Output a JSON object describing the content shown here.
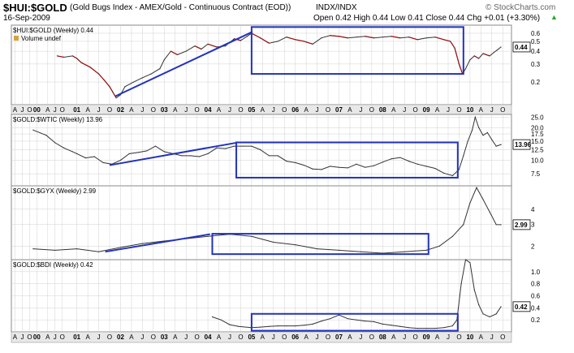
{
  "header": {
    "symbol": "$HUI:$GOLD",
    "description": "(Gold Bugs Index - AMEX/Gold - Continuous Contract (EOD))",
    "exchange": "INDX/INDX",
    "date": "16-Sep-2009",
    "watermark": "© StockCharts.com",
    "ohlc": "Open 0.42  High 0.44  Low 0.41  Close 0.44  Chg +0.01 (+3.30%)",
    "chg_arrow": "▲"
  },
  "colors": {
    "price_line": "#333333",
    "down_line": "#a01010",
    "box": "#2233bb",
    "grid": "#d2d2d2",
    "frame": "#888888",
    "volume_legend": "#d8a040"
  },
  "chart_data": [
    {
      "type": "line",
      "panel_label": "$HUI:$GOLD (Weekly) 0.44",
      "legend": "Volume undef",
      "last_value": "0.44",
      "y_scale": "log",
      "ylim": [
        0.12,
        0.72
      ],
      "y_ticks": [
        0.2,
        0.3,
        0.4,
        0.5,
        0.6
      ],
      "y_tick_labels": [
        "0.2",
        "0.3",
        "0.4",
        "0.5",
        "0.6"
      ],
      "x": [
        1999.55,
        1999.7,
        1999.9,
        2000.0,
        2000.1,
        2000.3,
        2000.5,
        2000.62,
        2000.75,
        2000.82,
        2000.9,
        2001.0,
        2001.1,
        2001.3,
        2001.5,
        2001.7,
        2001.9,
        2002.0,
        2002.15,
        2002.3,
        2002.5,
        2002.7,
        2002.85,
        2003.0,
        2003.2,
        2003.4,
        2003.6,
        2003.75,
        2003.9,
        2004.0,
        2004.2,
        2004.4,
        2004.6,
        2004.8,
        2005.0,
        2005.2,
        2005.4,
        2005.6,
        2005.8,
        2006.0,
        2006.2,
        2006.4,
        2006.6,
        2006.8,
        2007.0,
        2007.2,
        2007.4,
        2007.6,
        2007.8,
        2008.0,
        2008.2,
        2008.4,
        2008.55,
        2008.65,
        2008.75,
        2008.83,
        2008.9,
        2009.0,
        2009.1,
        2009.2,
        2009.3,
        2009.45,
        2009.55,
        2009.62,
        2009.71
      ],
      "values": [
        0.36,
        0.35,
        0.36,
        0.34,
        0.31,
        0.28,
        0.24,
        0.21,
        0.18,
        0.16,
        0.14,
        0.15,
        0.18,
        0.2,
        0.22,
        0.24,
        0.27,
        0.33,
        0.4,
        0.37,
        0.4,
        0.45,
        0.42,
        0.47,
        0.44,
        0.45,
        0.53,
        0.51,
        0.56,
        0.6,
        0.54,
        0.48,
        0.5,
        0.55,
        0.52,
        0.5,
        0.47,
        0.54,
        0.57,
        0.56,
        0.54,
        0.55,
        0.56,
        0.54,
        0.55,
        0.56,
        0.54,
        0.55,
        0.52,
        0.54,
        0.55,
        0.52,
        0.5,
        0.43,
        0.3,
        0.24,
        0.27,
        0.33,
        0.36,
        0.34,
        0.38,
        0.36,
        0.39,
        0.41,
        0.44
      ],
      "trendline": {
        "x": [
          2000.88,
          2004.02
        ],
        "y": [
          0.145,
          0.62
        ]
      },
      "box": {
        "x": [
          2004.0,
          2008.85
        ],
        "y": [
          0.24,
          0.69
        ]
      }
    },
    {
      "type": "line",
      "panel_label": "$GOLD:$WTIC (Weekly) 13.96",
      "last_value": "13.96",
      "y_scale": "log",
      "ylim": [
        5.8,
        26.5
      ],
      "y_ticks": [
        7.5,
        10.0,
        12.5,
        15.0,
        17.5,
        20.0,
        25.0
      ],
      "y_tick_labels": [
        "7.5",
        "10.0",
        "12.5",
        "15.0",
        "17.5",
        "20.0",
        "25.0"
      ],
      "x": [
        1999.0,
        1999.3,
        1999.5,
        1999.7,
        1999.9,
        2000.0,
        2000.2,
        2000.4,
        2000.6,
        2000.8,
        2001.0,
        2001.2,
        2001.4,
        2001.6,
        2001.8,
        2002.0,
        2002.2,
        2002.4,
        2002.6,
        2002.8,
        2003.0,
        2003.2,
        2003.4,
        2003.6,
        2003.8,
        2004.0,
        2004.2,
        2004.4,
        2004.6,
        2004.8,
        2005.0,
        2005.2,
        2005.4,
        2005.6,
        2005.8,
        2006.0,
        2006.2,
        2006.4,
        2006.6,
        2006.8,
        2007.0,
        2007.2,
        2007.4,
        2007.6,
        2007.8,
        2008.0,
        2008.2,
        2008.4,
        2008.6,
        2008.75,
        2008.85,
        2008.95,
        2009.05,
        2009.12,
        2009.2,
        2009.3,
        2009.4,
        2009.5,
        2009.6,
        2009.71
      ],
      "values": [
        19,
        17,
        14.5,
        13,
        12,
        11.5,
        10.5,
        10.8,
        9.5,
        9.2,
        10,
        11.5,
        11.8,
        12.2,
        13.5,
        12,
        11.5,
        11,
        11,
        10.8,
        11.5,
        13,
        12.8,
        13.5,
        13.5,
        13.5,
        12.5,
        11,
        11,
        9.8,
        9.5,
        9.0,
        8.3,
        8.2,
        8.8,
        8.6,
        8.5,
        9.2,
        8.6,
        8.9,
        9.6,
        10.3,
        10.6,
        9.8,
        9.2,
        8.8,
        8.4,
        7.6,
        7.2,
        8.2,
        11,
        15,
        19,
        25,
        20,
        17,
        18,
        15.5,
        13.5,
        13.96
      ],
      "trendline": {
        "x": [
          2000.75,
          2003.65
        ],
        "y": [
          9.0,
          14.5
        ]
      },
      "box": {
        "x": [
          2003.65,
          2008.72
        ],
        "y": [
          6.9,
          14.6
        ]
      }
    },
    {
      "type": "line",
      "panel_label": "$GOLD:$GYX (Weekly) 2.99",
      "last_value": "2.99",
      "y_scale": "log",
      "ylim": [
        1.55,
        6.2
      ],
      "y_ticks": [
        2,
        3,
        4
      ],
      "y_tick_labels": [
        "2",
        "3",
        "4"
      ],
      "x": [
        1999.0,
        1999.5,
        2000.0,
        2000.5,
        2001.0,
        2001.5,
        2002.0,
        2002.5,
        2003.0,
        2003.5,
        2004.0,
        2004.5,
        2005.0,
        2005.5,
        2006.0,
        2006.5,
        2007.0,
        2007.5,
        2008.0,
        2008.3,
        2008.6,
        2008.85,
        2009.0,
        2009.15,
        2009.3,
        2009.45,
        2009.6,
        2009.71
      ],
      "values": [
        1.9,
        1.85,
        1.9,
        1.8,
        1.95,
        2.1,
        2.2,
        2.3,
        2.4,
        2.5,
        2.4,
        2.15,
        2.05,
        1.9,
        1.85,
        1.8,
        1.75,
        1.8,
        1.85,
        2.0,
        2.4,
        3.0,
        4.5,
        6.0,
        4.8,
        3.8,
        3.0,
        2.99
      ],
      "trendline": {
        "x": [
          2000.65,
          2003.05
        ],
        "y": [
          1.8,
          2.5
        ]
      },
      "box": {
        "x": [
          2003.1,
          2008.05
        ],
        "y": [
          1.72,
          2.52
        ]
      }
    },
    {
      "type": "line",
      "panel_label": "$GOLD:$BDI (Weekly) 0.42",
      "last_value": "0.42",
      "y_scale": "linear",
      "ylim": [
        0.0,
        1.2
      ],
      "y_ticks": [
        0.2,
        0.4,
        0.6,
        0.8,
        1.0
      ],
      "y_tick_labels": [
        "0.2",
        "0.4",
        "0.6",
        "0.8",
        "1.0"
      ],
      "x": [
        2003.1,
        2003.3,
        2003.5,
        2003.7,
        2004.0,
        2004.2,
        2004.4,
        2004.6,
        2004.8,
        2005.0,
        2005.2,
        2005.4,
        2005.6,
        2005.8,
        2006.0,
        2006.2,
        2006.4,
        2006.6,
        2006.8,
        2007.0,
        2007.2,
        2007.4,
        2007.6,
        2007.8,
        2008.0,
        2008.2,
        2008.4,
        2008.6,
        2008.7,
        2008.8,
        2008.9,
        2009.0,
        2009.1,
        2009.2,
        2009.3,
        2009.45,
        2009.6,
        2009.71
      ],
      "values": [
        0.25,
        0.2,
        0.12,
        0.09,
        0.07,
        0.08,
        0.09,
        0.1,
        0.1,
        0.1,
        0.11,
        0.13,
        0.18,
        0.22,
        0.28,
        0.22,
        0.2,
        0.18,
        0.17,
        0.13,
        0.11,
        0.09,
        0.07,
        0.06,
        0.06,
        0.06,
        0.07,
        0.1,
        0.2,
        0.8,
        1.2,
        1.15,
        0.7,
        0.45,
        0.3,
        0.25,
        0.3,
        0.42
      ],
      "box": {
        "x": [
          2004.0,
          2008.72
        ],
        "y": [
          0.02,
          0.3
        ]
      }
    }
  ],
  "x_axis_labels": [
    {
      "label": "A",
      "t": 1998.583
    },
    {
      "label": "J",
      "t": 1998.75
    },
    {
      "label": "O",
      "t": 1998.917
    },
    {
      "label": "00",
      "t": 1999.083
    },
    {
      "label": "A",
      "t": 1999.333
    },
    {
      "label": "J",
      "t": 1999.5
    },
    {
      "label": "O",
      "t": 1999.667
    },
    {
      "label": "01",
      "t": 2000.0
    },
    {
      "label": "A",
      "t": 2000.25
    },
    {
      "label": "J",
      "t": 2000.5
    },
    {
      "label": "O",
      "t": 2000.75
    },
    {
      "label": "02",
      "t": 2001.0
    },
    {
      "label": "A",
      "t": 2001.25
    },
    {
      "label": "J",
      "t": 2001.5
    },
    {
      "label": "O",
      "t": 2001.75
    },
    {
      "label": "03",
      "t": 2002.0
    },
    {
      "label": "A",
      "t": 2002.25
    },
    {
      "label": "J",
      "t": 2002.5
    },
    {
      "label": "O",
      "t": 2002.75
    },
    {
      "label": "04",
      "t": 2003.0
    },
    {
      "label": "A",
      "t": 2003.25
    },
    {
      "label": "J",
      "t": 2003.5
    },
    {
      "label": "O",
      "t": 2003.75
    },
    {
      "label": "05",
      "t": 2004.0
    },
    {
      "label": "A",
      "t": 2004.25
    },
    {
      "label": "J",
      "t": 2004.5
    },
    {
      "label": "O",
      "t": 2004.75
    },
    {
      "label": "06",
      "t": 2005.0
    },
    {
      "label": "A",
      "t": 2005.25
    },
    {
      "label": "J",
      "t": 2005.5
    },
    {
      "label": "O",
      "t": 2005.75
    },
    {
      "label": "07",
      "t": 2006.0
    },
    {
      "label": "A",
      "t": 2006.25
    },
    {
      "label": "J",
      "t": 2006.5
    },
    {
      "label": "O",
      "t": 2006.75
    },
    {
      "label": "08",
      "t": 2007.0
    },
    {
      "label": "A",
      "t": 2007.25
    },
    {
      "label": "J",
      "t": 2007.5
    },
    {
      "label": "O",
      "t": 2007.75
    },
    {
      "label": "09",
      "t": 2008.0
    },
    {
      "label": "A",
      "t": 2008.25
    },
    {
      "label": "J",
      "t": 2008.5
    },
    {
      "label": "O",
      "t": 2008.75
    },
    {
      "label": "10",
      "t": 2009.0
    },
    {
      "label": "A",
      "t": 2009.25
    },
    {
      "label": "J",
      "t": 2009.5
    },
    {
      "label": "O",
      "t": 2009.75
    }
  ]
}
